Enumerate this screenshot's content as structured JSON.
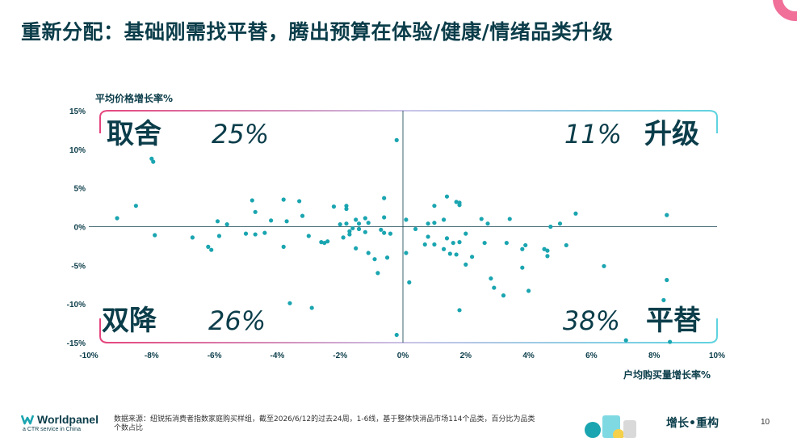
{
  "title": "重新分配：基础刚需找平替，腾出预算在体验/健康/情绪品类升级",
  "footer": {
    "brand": "Worldpanel",
    "brand_sub": "a CTR service in China",
    "source": "数据来源：纽锐拓消费者指数家庭购买样组，截至2026/6/12的过去24周，1-6线，基于整体快消品市场114个品类，百分比为品类个数占比",
    "tagline": "增长•重构",
    "page": "10"
  },
  "colors": {
    "title": "#0b3d4a",
    "points": "#1aa5b0",
    "quadrant_left": "#e5457d",
    "quadrant_right": "#5fd3e0",
    "axis": "#0b3d4a",
    "deco": "#f0709a"
  },
  "chart_data": {
    "type": "scatter",
    "xlabel": "户均购买量增长率%",
    "ylabel": "平均价格增长率%",
    "xlim": [
      -10,
      10
    ],
    "ylim": [
      -15,
      15
    ],
    "x_ticks": [
      "-10%",
      "-8%",
      "-6%",
      "-4%",
      "-2%",
      "0%",
      "2%",
      "4%",
      "6%",
      "8%",
      "10%"
    ],
    "y_ticks": [
      "15%",
      "10%",
      "5%",
      "0%",
      "-5%",
      "-10%",
      "-15%"
    ],
    "quadrants": [
      {
        "label": "取舍",
        "value": "25%",
        "position": "top-left"
      },
      {
        "label": "升级",
        "value": "11%",
        "position": "top-right"
      },
      {
        "label": "双降",
        "value": "26%",
        "position": "bottom-left"
      },
      {
        "label": "平替",
        "value": "38%",
        "position": "bottom-right"
      }
    ],
    "points": [
      [
        -9.1,
        1.1
      ],
      [
        -8.5,
        2.7
      ],
      [
        -8.0,
        8.8
      ],
      [
        -7.95,
        8.4
      ],
      [
        -7.9,
        -1.1
      ],
      [
        -6.7,
        -1.4
      ],
      [
        -6.2,
        -2.6
      ],
      [
        -6.1,
        -3.0
      ],
      [
        -5.9,
        0.7
      ],
      [
        -5.85,
        -1.2
      ],
      [
        -5.6,
        0.3
      ],
      [
        -5.0,
        -0.9
      ],
      [
        -4.8,
        3.4
      ],
      [
        -4.7,
        1.9
      ],
      [
        -4.7,
        -1.0
      ],
      [
        -4.4,
        -0.8
      ],
      [
        -4.2,
        0.8
      ],
      [
        -3.8,
        -2.6
      ],
      [
        -3.8,
        3.5
      ],
      [
        -3.7,
        0.7
      ],
      [
        -3.6,
        -9.9
      ],
      [
        -3.3,
        3.3
      ],
      [
        -3.2,
        1.4
      ],
      [
        -3.0,
        -1.2
      ],
      [
        -2.9,
        -10.5
      ],
      [
        -2.6,
        -2.0
      ],
      [
        -2.5,
        -2.1
      ],
      [
        -2.4,
        -1.9
      ],
      [
        -2.2,
        2.6
      ],
      [
        -2.0,
        0.3
      ],
      [
        -1.9,
        -1.4
      ],
      [
        -1.8,
        2.7
      ],
      [
        -1.8,
        2.3
      ],
      [
        -1.8,
        0.4
      ],
      [
        -1.7,
        -0.6
      ],
      [
        -1.7,
        -1.0
      ],
      [
        -1.6,
        -0.2
      ],
      [
        -1.5,
        0.9
      ],
      [
        -1.5,
        -2.8
      ],
      [
        -1.4,
        -0.3
      ],
      [
        -1.4,
        0.4
      ],
      [
        -1.2,
        1.1
      ],
      [
        -1.2,
        -0.7
      ],
      [
        -1.1,
        -3.4
      ],
      [
        -1.1,
        0.5
      ],
      [
        -0.9,
        -4.2
      ],
      [
        -0.8,
        -6.0
      ],
      [
        -0.7,
        -0.4
      ],
      [
        -0.6,
        3.7
      ],
      [
        -0.6,
        1.2
      ],
      [
        -0.6,
        -0.8
      ],
      [
        -0.5,
        -4.0
      ],
      [
        -0.4,
        -0.9
      ],
      [
        -0.2,
        11.2
      ],
      [
        -0.2,
        -14.0
      ],
      [
        0.1,
        0.9
      ],
      [
        0.1,
        -3.4
      ],
      [
        0.2,
        -7.2
      ],
      [
        0.4,
        -0.3
      ],
      [
        0.7,
        -2.3
      ],
      [
        0.8,
        -1.3
      ],
      [
        0.8,
        0.4
      ],
      [
        1.0,
        2.7
      ],
      [
        1.0,
        0.5
      ],
      [
        1.0,
        -2.3
      ],
      [
        1.3,
        0.9
      ],
      [
        1.3,
        -2.9
      ],
      [
        1.4,
        -1.5
      ],
      [
        1.4,
        3.9
      ],
      [
        1.5,
        -3.5
      ],
      [
        1.6,
        -2.1
      ],
      [
        1.7,
        3.2
      ],
      [
        1.7,
        -3.6
      ],
      [
        1.8,
        3.1
      ],
      [
        1.8,
        2.8
      ],
      [
        1.8,
        -2.0
      ],
      [
        1.8,
        -10.8
      ],
      [
        2.0,
        -0.9
      ],
      [
        2.0,
        -4.9
      ],
      [
        2.2,
        -3.9
      ],
      [
        2.5,
        1.0
      ],
      [
        2.6,
        -2.1
      ],
      [
        2.7,
        0.4
      ],
      [
        2.8,
        -6.7
      ],
      [
        2.9,
        -7.9
      ],
      [
        3.2,
        -8.9
      ],
      [
        3.3,
        -2.1
      ],
      [
        3.4,
        1.0
      ],
      [
        3.8,
        -2.9
      ],
      [
        3.8,
        -5.3
      ],
      [
        3.9,
        -2.4
      ],
      [
        4.0,
        -8.3
      ],
      [
        4.5,
        -2.9
      ],
      [
        4.6,
        -3.1
      ],
      [
        4.6,
        -3.8
      ],
      [
        4.7,
        0.0
      ],
      [
        5.0,
        0.4
      ],
      [
        5.2,
        -2.4
      ],
      [
        5.5,
        1.7
      ],
      [
        6.4,
        -5.1
      ],
      [
        7.1,
        -14.7
      ],
      [
        8.3,
        -9.5
      ],
      [
        8.4,
        -6.9
      ],
      [
        8.4,
        1.5
      ],
      [
        8.5,
        -14.9
      ]
    ]
  }
}
